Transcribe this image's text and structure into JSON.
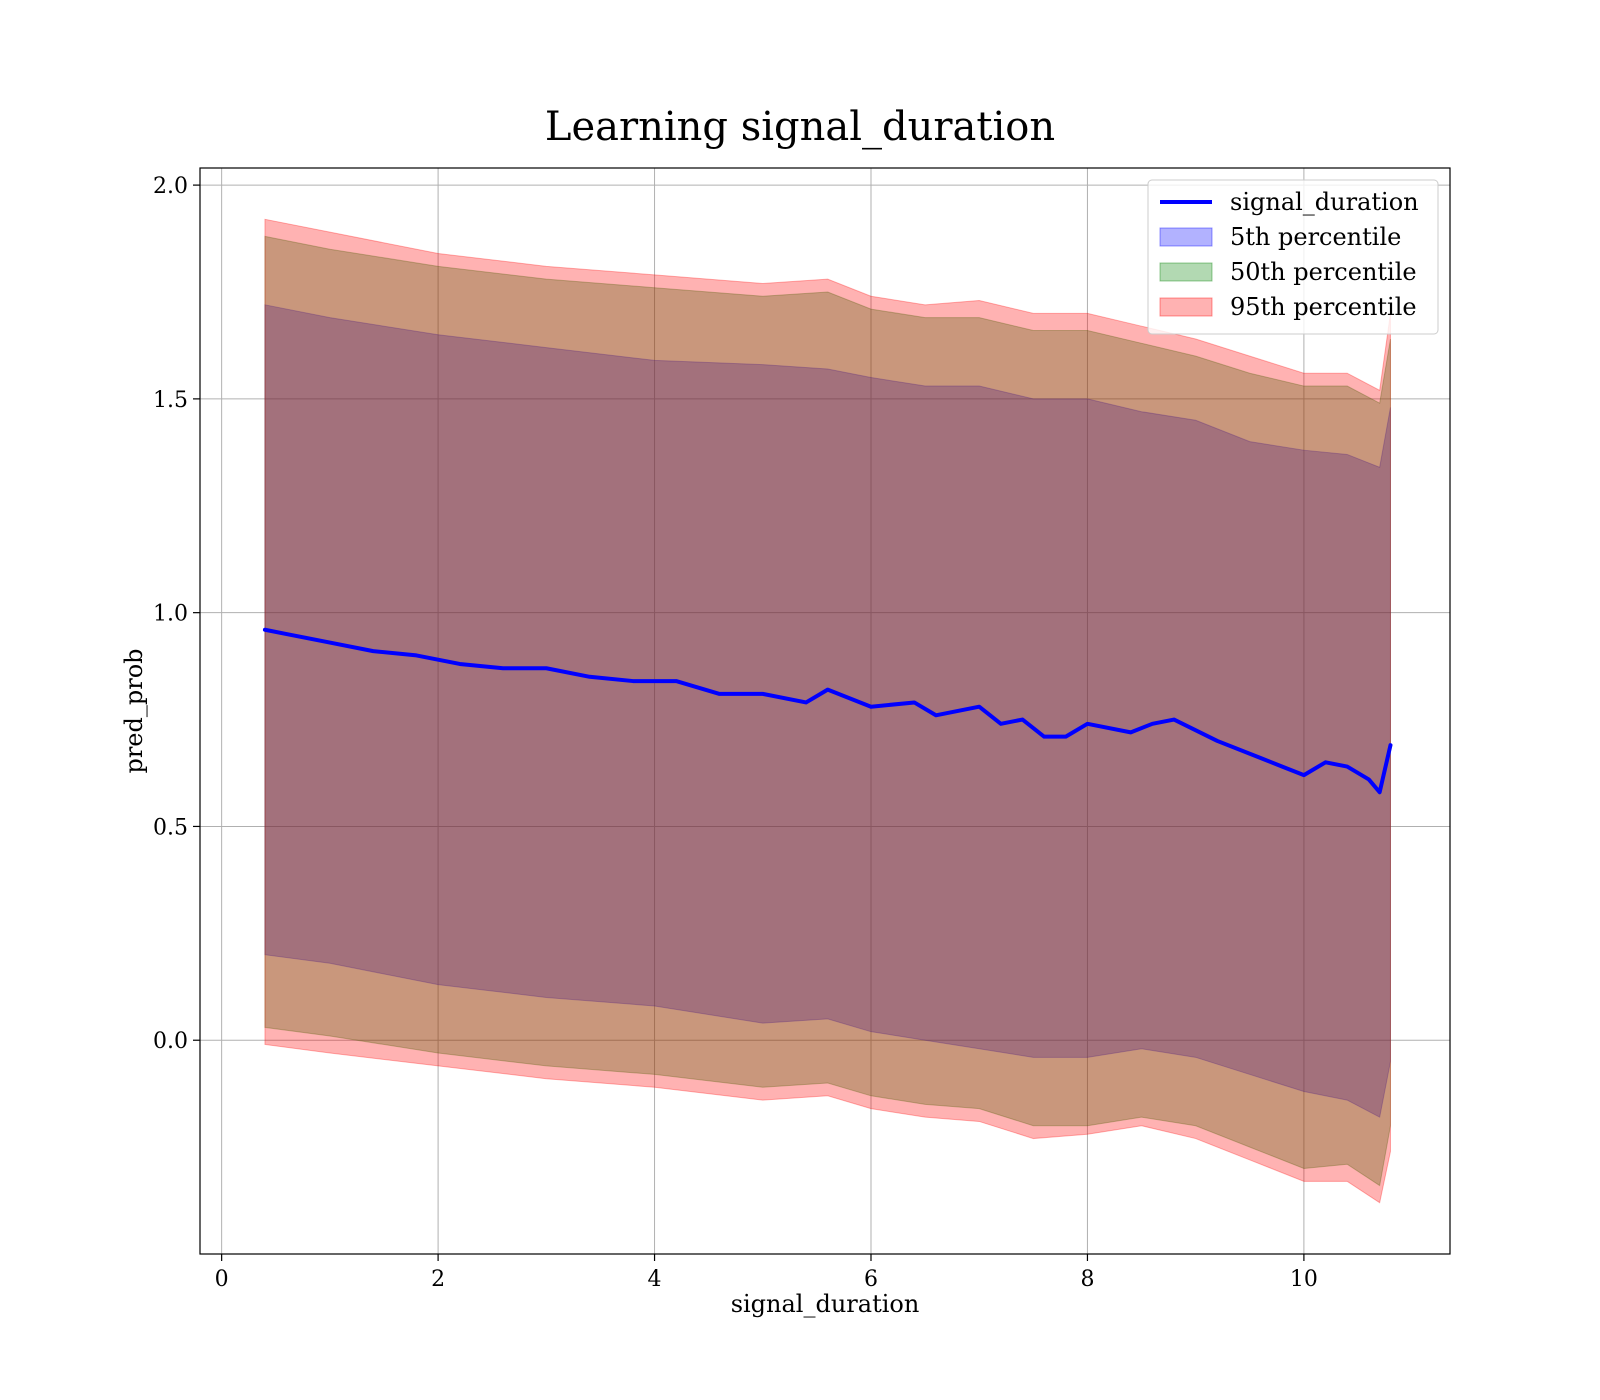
{
  "chart_data": {
    "type": "area",
    "title": "Learning signal_duration",
    "xlabel": "signal_duration",
    "ylabel": "pred_prob",
    "xlim": [
      -0.2,
      11.35
    ],
    "ylim": [
      -0.5,
      2.04
    ],
    "xticks": [
      0,
      2,
      4,
      6,
      8,
      10
    ],
    "xtick_labels": [
      "0",
      "2",
      "4",
      "6",
      "8",
      "10"
    ],
    "yticks": [
      0.0,
      0.5,
      1.0,
      1.5,
      2.0
    ],
    "ytick_labels": [
      "0.0",
      "0.5",
      "1.0",
      "1.5",
      "2.0"
    ],
    "grid": true,
    "legend_position": "top-right",
    "series": [
      {
        "name": "signal_duration",
        "kind": "line",
        "color": "#0000ff",
        "x": [
          0.4,
          0.6,
          1.0,
          1.4,
          1.8,
          2.2,
          2.6,
          3.0,
          3.4,
          3.8,
          4.2,
          4.6,
          5.0,
          5.4,
          5.6,
          6.0,
          6.4,
          6.6,
          7.0,
          7.2,
          7.4,
          7.6,
          7.8,
          8.0,
          8.4,
          8.6,
          8.8,
          9.2,
          9.6,
          9.8,
          10.0,
          10.2,
          10.4,
          10.6,
          10.7,
          10.8
        ],
        "y": [
          0.96,
          0.95,
          0.93,
          0.91,
          0.9,
          0.88,
          0.87,
          0.87,
          0.85,
          0.84,
          0.84,
          0.81,
          0.81,
          0.79,
          0.82,
          0.78,
          0.79,
          0.76,
          0.78,
          0.74,
          0.75,
          0.71,
          0.71,
          0.74,
          0.72,
          0.74,
          0.75,
          0.7,
          0.66,
          0.64,
          0.62,
          0.65,
          0.64,
          0.61,
          0.58,
          0.69
        ]
      },
      {
        "name": "5th percentile",
        "kind": "band",
        "color": "#0000ff",
        "opacity": 0.3,
        "x": [
          0.4,
          1.0,
          2.0,
          3.0,
          4.0,
          5.0,
          5.6,
          6.0,
          6.5,
          7.0,
          7.5,
          8.0,
          8.5,
          9.0,
          9.5,
          10.0,
          10.4,
          10.7,
          10.8
        ],
        "low": [
          0.2,
          0.18,
          0.13,
          0.1,
          0.08,
          0.04,
          0.05,
          0.02,
          0.0,
          -0.02,
          -0.04,
          -0.04,
          -0.02,
          -0.04,
          -0.08,
          -0.12,
          -0.14,
          -0.18,
          -0.05
        ],
        "high": [
          1.72,
          1.69,
          1.65,
          1.62,
          1.59,
          1.58,
          1.57,
          1.55,
          1.53,
          1.53,
          1.5,
          1.5,
          1.47,
          1.45,
          1.4,
          1.38,
          1.37,
          1.34,
          1.48
        ]
      },
      {
        "name": "50th percentile",
        "kind": "band",
        "color": "#008000",
        "opacity": 0.3,
        "x": [
          0.4,
          1.0,
          2.0,
          3.0,
          4.0,
          5.0,
          5.6,
          6.0,
          6.5,
          7.0,
          7.5,
          8.0,
          8.5,
          9.0,
          9.5,
          10.0,
          10.4,
          10.7,
          10.8
        ],
        "low": [
          0.03,
          0.01,
          -0.03,
          -0.06,
          -0.08,
          -0.11,
          -0.1,
          -0.13,
          -0.15,
          -0.16,
          -0.2,
          -0.2,
          -0.18,
          -0.2,
          -0.25,
          -0.3,
          -0.29,
          -0.34,
          -0.2
        ],
        "high": [
          1.88,
          1.85,
          1.81,
          1.78,
          1.76,
          1.74,
          1.75,
          1.71,
          1.69,
          1.69,
          1.66,
          1.66,
          1.63,
          1.6,
          1.56,
          1.53,
          1.53,
          1.49,
          1.64
        ]
      },
      {
        "name": "95th percentile",
        "kind": "band",
        "color": "#ff0000",
        "opacity": 0.3,
        "x": [
          0.4,
          1.0,
          2.0,
          3.0,
          4.0,
          5.0,
          5.6,
          6.0,
          6.5,
          7.0,
          7.5,
          8.0,
          8.5,
          9.0,
          9.5,
          10.0,
          10.4,
          10.7,
          10.8
        ],
        "low": [
          -0.01,
          -0.03,
          -0.06,
          -0.09,
          -0.11,
          -0.14,
          -0.13,
          -0.16,
          -0.18,
          -0.19,
          -0.23,
          -0.22,
          -0.2,
          -0.23,
          -0.28,
          -0.33,
          -0.33,
          -0.38,
          -0.26
        ],
        "high": [
          1.92,
          1.89,
          1.84,
          1.81,
          1.79,
          1.77,
          1.78,
          1.74,
          1.72,
          1.73,
          1.7,
          1.7,
          1.67,
          1.64,
          1.6,
          1.56,
          1.56,
          1.52,
          1.7
        ]
      }
    ]
  }
}
